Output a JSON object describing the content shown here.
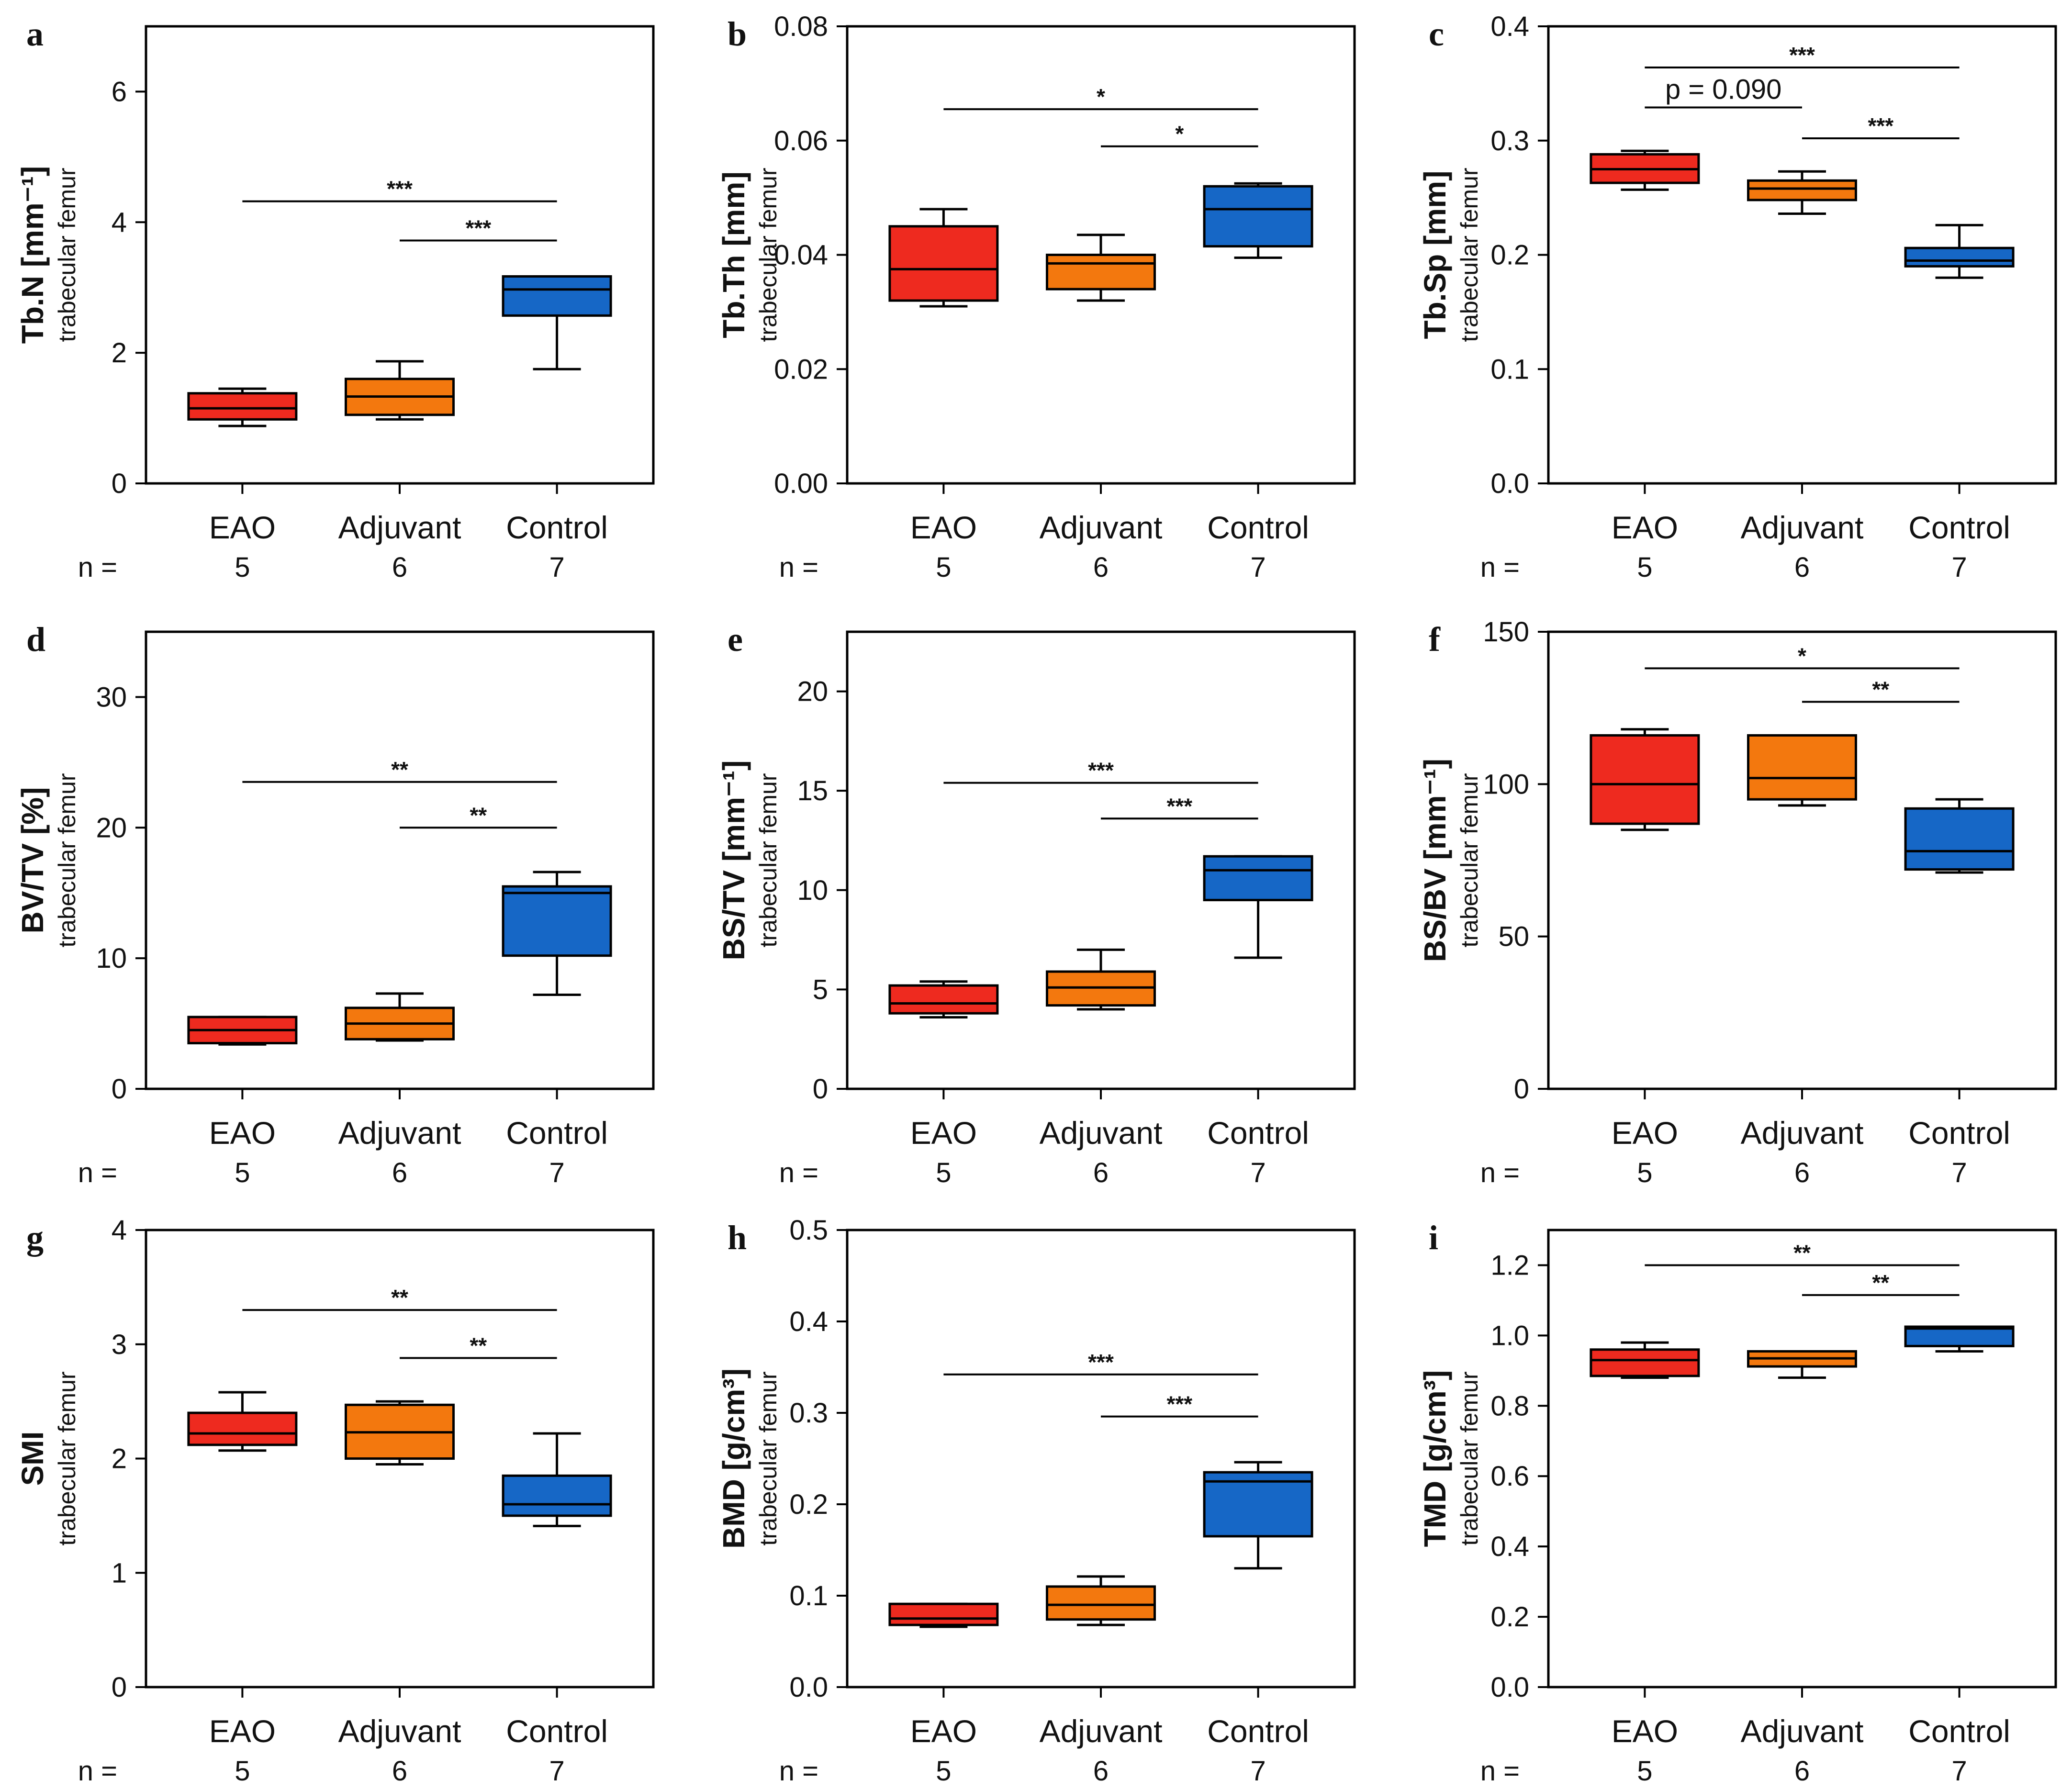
{
  "figure": {
    "n_label": "n =",
    "colors": {
      "EAO": "#ee2a1f",
      "Adjuvant": "#f3780e",
      "Control": "#1667c6"
    }
  },
  "chart_data": [
    {
      "panel": "a",
      "type": "box",
      "ylabel": "Tb.N [mm⁻¹]",
      "ysub": "trabecular femur",
      "ylim": [
        0,
        7
      ],
      "yticks": [
        0,
        2,
        4,
        6
      ],
      "tick_decimals": 0,
      "categories": [
        "EAO",
        "Adjuvant",
        "Control"
      ],
      "n": [
        "5",
        "6",
        "7"
      ],
      "boxes": [
        {
          "min": 0.88,
          "q1": 0.98,
          "median": 1.15,
          "q3": 1.38,
          "max": 1.45
        },
        {
          "min": 0.98,
          "q1": 1.05,
          "median": 1.33,
          "q3": 1.6,
          "max": 1.87
        },
        {
          "min": 1.75,
          "q1": 2.57,
          "median": 2.97,
          "q3": 3.17,
          "max": 3.17
        }
      ],
      "significance": [
        {
          "from": 0,
          "to": 2,
          "y": 4.32,
          "label": "***"
        },
        {
          "from": 1,
          "to": 2,
          "y": 3.72,
          "label": "***"
        }
      ]
    },
    {
      "panel": "b",
      "type": "box",
      "ylabel": "Tb.Th [mm]",
      "ysub": "trabecular femur",
      "ylim": [
        0,
        0.08
      ],
      "yticks": [
        0.0,
        0.02,
        0.04,
        0.06,
        0.08
      ],
      "tick_decimals": 2,
      "categories": [
        "EAO",
        "Adjuvant",
        "Control"
      ],
      "n": [
        "5",
        "6",
        "7"
      ],
      "boxes": [
        {
          "min": 0.031,
          "q1": 0.032,
          "median": 0.0375,
          "q3": 0.045,
          "max": 0.048
        },
        {
          "min": 0.032,
          "q1": 0.034,
          "median": 0.0385,
          "q3": 0.04,
          "max": 0.0435
        },
        {
          "min": 0.0395,
          "q1": 0.0415,
          "median": 0.048,
          "q3": 0.052,
          "max": 0.0525
        }
      ],
      "significance": [
        {
          "from": 0,
          "to": 2,
          "y": 0.0655,
          "label": "*"
        },
        {
          "from": 1,
          "to": 2,
          "y": 0.059,
          "label": "*"
        }
      ]
    },
    {
      "panel": "c",
      "type": "box",
      "ylabel": "Tb.Sp [mm]",
      "ysub": "trabecular femur",
      "ylim": [
        0,
        0.4
      ],
      "yticks": [
        0.0,
        0.1,
        0.2,
        0.3,
        0.4
      ],
      "tick_decimals": 1,
      "categories": [
        "EAO",
        "Adjuvant",
        "Control"
      ],
      "n": [
        "5",
        "6",
        "7"
      ],
      "boxes": [
        {
          "min": 0.257,
          "q1": 0.263,
          "median": 0.275,
          "q3": 0.288,
          "max": 0.291
        },
        {
          "min": 0.236,
          "q1": 0.248,
          "median": 0.258,
          "q3": 0.265,
          "max": 0.273
        },
        {
          "min": 0.18,
          "q1": 0.19,
          "median": 0.195,
          "q3": 0.206,
          "max": 0.226
        }
      ],
      "significance": [
        {
          "from": 0,
          "to": 2,
          "y": 0.364,
          "label": "***"
        },
        {
          "from": 0,
          "to": 1,
          "y": 0.329,
          "label": "p = 0.090"
        },
        {
          "from": 1,
          "to": 2,
          "y": 0.302,
          "label": "***"
        }
      ]
    },
    {
      "panel": "d",
      "type": "box",
      "ylabel": "BV/TV [%]",
      "ysub": "trabecular femur",
      "ylim": [
        0,
        35
      ],
      "yticks": [
        0,
        10,
        20,
        30
      ],
      "tick_decimals": 0,
      "categories": [
        "EAO",
        "Adjuvant",
        "Control"
      ],
      "n": [
        "5",
        "6",
        "7"
      ],
      "boxes": [
        {
          "min": 3.4,
          "q1": 3.5,
          "median": 4.5,
          "q3": 5.5,
          "max": 5.5
        },
        {
          "min": 3.7,
          "q1": 3.8,
          "median": 5.0,
          "q3": 6.2,
          "max": 7.3
        },
        {
          "min": 7.2,
          "q1": 10.2,
          "median": 15.0,
          "q3": 15.5,
          "max": 16.6
        }
      ],
      "significance": [
        {
          "from": 0,
          "to": 2,
          "y": 23.5,
          "label": "**"
        },
        {
          "from": 1,
          "to": 2,
          "y": 20.0,
          "label": "**"
        }
      ]
    },
    {
      "panel": "e",
      "type": "box",
      "ylabel": "BS/TV [mm⁻¹]",
      "ysub": "trabecular femur",
      "ylim": [
        0,
        23
      ],
      "yticks": [
        0,
        5,
        10,
        15,
        20
      ],
      "tick_decimals": 0,
      "categories": [
        "EAO",
        "Adjuvant",
        "Control"
      ],
      "n": [
        "5",
        "6",
        "7"
      ],
      "boxes": [
        {
          "min": 3.6,
          "q1": 3.8,
          "median": 4.3,
          "q3": 5.2,
          "max": 5.4
        },
        {
          "min": 4.0,
          "q1": 4.2,
          "median": 5.1,
          "q3": 5.9,
          "max": 7.0
        },
        {
          "min": 6.6,
          "q1": 9.5,
          "median": 11.0,
          "q3": 11.7,
          "max": 11.7
        }
      ],
      "significance": [
        {
          "from": 0,
          "to": 2,
          "y": 15.4,
          "label": "***"
        },
        {
          "from": 1,
          "to": 2,
          "y": 13.6,
          "label": "***"
        }
      ]
    },
    {
      "panel": "f",
      "type": "box",
      "ylabel": "BS/BV [mm⁻¹]",
      "ysub": "trabecular femur",
      "ylim": [
        0,
        150
      ],
      "yticks": [
        0,
        50,
        100,
        150
      ],
      "tick_decimals": 0,
      "categories": [
        "EAO",
        "Adjuvant",
        "Control"
      ],
      "n": [
        "5",
        "6",
        "7"
      ],
      "boxes": [
        {
          "min": 85,
          "q1": 87,
          "median": 100,
          "q3": 116,
          "max": 118
        },
        {
          "min": 93,
          "q1": 95,
          "median": 102,
          "q3": 116,
          "max": 116
        },
        {
          "min": 71,
          "q1": 72,
          "median": 78,
          "q3": 92,
          "max": 95
        }
      ],
      "significance": [
        {
          "from": 0,
          "to": 2,
          "y": 138,
          "label": "*"
        },
        {
          "from": 1,
          "to": 2,
          "y": 127,
          "label": "**"
        }
      ]
    },
    {
      "panel": "g",
      "type": "box",
      "ylabel": "SMI",
      "ysub": "trabecular femur",
      "ylim": [
        0,
        4
      ],
      "yticks": [
        0,
        1,
        2,
        3,
        4
      ],
      "tick_decimals": 0,
      "categories": [
        "EAO",
        "Adjuvant",
        "Control"
      ],
      "n": [
        "5",
        "6",
        "7"
      ],
      "boxes": [
        {
          "min": 2.07,
          "q1": 2.12,
          "median": 2.22,
          "q3": 2.4,
          "max": 2.58
        },
        {
          "min": 1.95,
          "q1": 2.0,
          "median": 2.23,
          "q3": 2.47,
          "max": 2.5
        },
        {
          "min": 1.41,
          "q1": 1.5,
          "median": 1.6,
          "q3": 1.85,
          "max": 2.22
        }
      ],
      "significance": [
        {
          "from": 0,
          "to": 2,
          "y": 3.3,
          "label": "**"
        },
        {
          "from": 1,
          "to": 2,
          "y": 2.88,
          "label": "**"
        }
      ]
    },
    {
      "panel": "h",
      "type": "box",
      "ylabel": "BMD [g/cm³]",
      "ysub": "trabecular femur",
      "ylim": [
        0,
        0.5
      ],
      "yticks": [
        0.0,
        0.1,
        0.2,
        0.3,
        0.4,
        0.5
      ],
      "tick_decimals": 1,
      "categories": [
        "EAO",
        "Adjuvant",
        "Control"
      ],
      "n": [
        "5",
        "6",
        "7"
      ],
      "boxes": [
        {
          "min": 0.066,
          "q1": 0.068,
          "median": 0.075,
          "q3": 0.091,
          "max": 0.091
        },
        {
          "min": 0.068,
          "q1": 0.074,
          "median": 0.09,
          "q3": 0.11,
          "max": 0.121
        },
        {
          "min": 0.13,
          "q1": 0.165,
          "median": 0.225,
          "q3": 0.235,
          "max": 0.246
        }
      ],
      "significance": [
        {
          "from": 0,
          "to": 2,
          "y": 0.342,
          "label": "***"
        },
        {
          "from": 1,
          "to": 2,
          "y": 0.296,
          "label": "***"
        }
      ]
    },
    {
      "panel": "i",
      "type": "box",
      "ylabel": "TMD [g/cm³]",
      "ysub": "trabecular femur",
      "ylim": [
        0,
        1.3
      ],
      "yticks": [
        0.0,
        0.2,
        0.4,
        0.6,
        0.8,
        1.0,
        1.2
      ],
      "tick_decimals": 1,
      "categories": [
        "EAO",
        "Adjuvant",
        "Control"
      ],
      "n": [
        "5",
        "6",
        "7"
      ],
      "boxes": [
        {
          "min": 0.88,
          "q1": 0.885,
          "median": 0.93,
          "q3": 0.96,
          "max": 0.98
        },
        {
          "min": 0.88,
          "q1": 0.912,
          "median": 0.935,
          "q3": 0.955,
          "max": 0.955
        },
        {
          "min": 0.955,
          "q1": 0.97,
          "median": 1.02,
          "q3": 1.025,
          "max": 1.025
        }
      ],
      "significance": [
        {
          "from": 0,
          "to": 2,
          "y": 1.2,
          "label": "**"
        },
        {
          "from": 1,
          "to": 2,
          "y": 1.115,
          "label": "**"
        }
      ]
    }
  ]
}
